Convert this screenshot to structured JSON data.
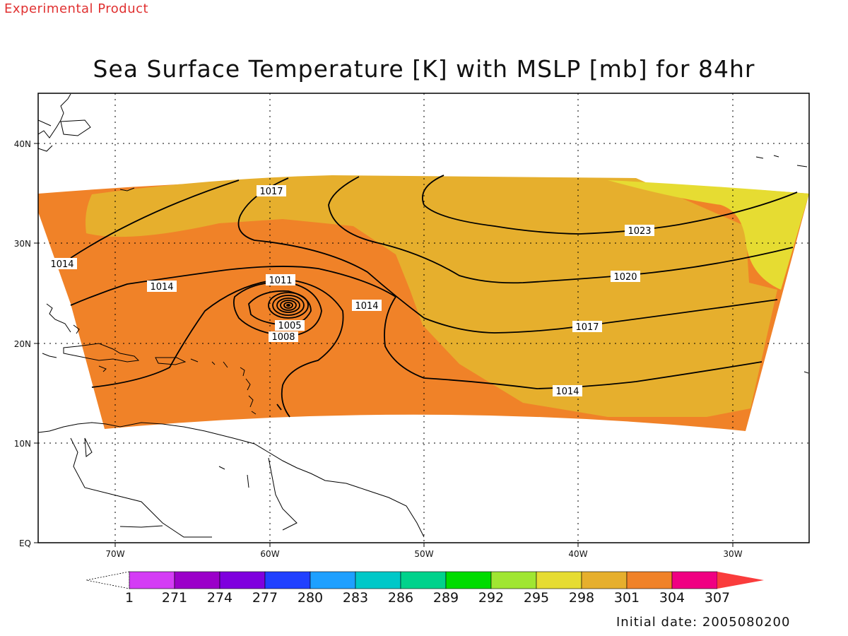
{
  "header": {
    "experimental_label": "Experimental Product"
  },
  "title": "Sea Surface Temperature [K] with MSLP [mb] for 84hr",
  "footer": {
    "initial_date": "Initial date: 2005080200"
  },
  "axes": {
    "lat_ticks": [
      "40N",
      "30N",
      "20N",
      "10N",
      "EQ"
    ],
    "lon_ticks": [
      "70W",
      "60W",
      "50W",
      "40W",
      "30W"
    ]
  },
  "colorbar": {
    "labels": [
      "1",
      "271",
      "274",
      "277",
      "280",
      "283",
      "286",
      "289",
      "292",
      "295",
      "298",
      "301",
      "304",
      "307"
    ],
    "colors": [
      "#d43cf5",
      "#9b00c9",
      "#7f00de",
      "#2040ff",
      "#1ea0ff",
      "#00c8c8",
      "#00d28c",
      "#00dc00",
      "#a0e632",
      "#e6dc32",
      "#e6af2d",
      "#f08228",
      "#f00082",
      "#fa3c3c"
    ]
  },
  "isobar_labels": [
    "1017",
    "1023",
    "1014",
    "1011",
    "1014",
    "1014",
    "1020",
    "1017",
    "1005",
    "1008",
    "1014"
  ],
  "field_colors": {
    "sst_298": "#e6dc32",
    "sst_301": "#e6af2d",
    "sst_304": "#f08228",
    "land_outline": "#000000",
    "grid": "#000000"
  }
}
